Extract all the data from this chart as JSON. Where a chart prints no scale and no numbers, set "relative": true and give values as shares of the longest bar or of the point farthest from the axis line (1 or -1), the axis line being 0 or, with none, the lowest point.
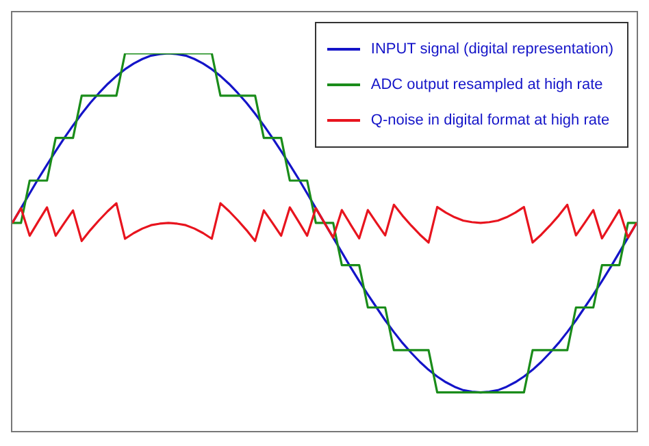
{
  "chart_data": {
    "type": "line",
    "relative": true,
    "legend": "top right",
    "marker": "none",
    "line_style": "solid",
    "categories": [
      null,
      null,
      null,
      null,
      null,
      null,
      null,
      null,
      null,
      null,
      null,
      null,
      null,
      null,
      null,
      null,
      null,
      null,
      null,
      null,
      null,
      null,
      null,
      null,
      null,
      null,
      null,
      null,
      null,
      null,
      null,
      null,
      null,
      null,
      null,
      null,
      null,
      null,
      null,
      null,
      null,
      null,
      null,
      null,
      null,
      null,
      null,
      null,
      null,
      null,
      null,
      null,
      null,
      null,
      null,
      null,
      null,
      null,
      null,
      null,
      null,
      null,
      null,
      null,
      null,
      null,
      null,
      null,
      null,
      null,
      null,
      null,
      null
    ],
    "series": [
      {
        "name": "INPUT signal (digital representation)",
        "color": "#1414c8",
        "values": [
          0.551,
          0.59,
          0.629,
          0.668,
          0.705,
          0.741,
          0.776,
          0.809,
          0.84,
          0.869,
          0.895,
          0.919,
          0.94,
          0.958,
          0.973,
          0.985,
          0.994,
          0.998,
          1,
          0.998,
          0.994,
          0.985,
          0.973,
          0.958,
          0.94,
          0.919,
          0.895,
          0.869,
          0.84,
          0.809,
          0.776,
          0.741,
          0.705,
          0.668,
          0.629,
          0.59,
          0.551,
          0.512,
          0.473,
          0.434,
          0.397,
          0.361,
          0.327,
          0.293,
          0.262,
          0.233,
          0.207,
          0.183,
          0.162,
          0.144,
          0.129,
          0.117,
          0.108,
          0.104,
          0.102,
          0.104,
          0.108,
          0.117,
          0.129,
          0.144,
          0.162,
          0.183,
          0.207,
          0.233,
          0.262,
          0.293,
          0.327,
          0.361,
          0.397,
          0.434,
          0.473,
          0.512,
          0.551
        ]
      },
      {
        "name": "ADC output resampled at high rate",
        "color": "#1a8c1a",
        "values": [
          0.551,
          0.551,
          0.663,
          0.663,
          0.663,
          0.776,
          0.776,
          0.776,
          0.888,
          0.888,
          0.888,
          0.888,
          0.888,
          1,
          1,
          1,
          1,
          1,
          1,
          1,
          1,
          1,
          1,
          1,
          0.888,
          0.888,
          0.888,
          0.888,
          0.888,
          0.776,
          0.776,
          0.776,
          0.663,
          0.663,
          0.663,
          0.551,
          0.551,
          0.551,
          0.439,
          0.439,
          0.439,
          0.327,
          0.327,
          0.327,
          0.214,
          0.214,
          0.214,
          0.214,
          0.214,
          0.102,
          0.102,
          0.102,
          0.102,
          0.102,
          0.102,
          0.102,
          0.102,
          0.102,
          0.102,
          0.102,
          0.214,
          0.214,
          0.214,
          0.214,
          0.214,
          0.327,
          0.327,
          0.327,
          0.439,
          0.439,
          0.439,
          0.551,
          0.551
        ]
      },
      {
        "name": "Q-noise in digital format at high rate",
        "color": "#e8141e",
        "values": [
          0.551,
          0.59,
          0.517,
          0.555,
          0.592,
          0.517,
          0.551,
          0.584,
          0.503,
          0.532,
          0.558,
          0.582,
          0.603,
          0.509,
          0.524,
          0.536,
          0.545,
          0.549,
          0.551,
          0.549,
          0.545,
          0.536,
          0.524,
          0.509,
          0.603,
          0.582,
          0.558,
          0.532,
          0.503,
          0.584,
          0.551,
          0.517,
          0.592,
          0.555,
          0.517,
          0.59,
          0.551,
          0.512,
          0.585,
          0.547,
          0.51,
          0.585,
          0.551,
          0.518,
          0.599,
          0.57,
          0.544,
          0.52,
          0.499,
          0.593,
          0.578,
          0.566,
          0.557,
          0.553,
          0.551,
          0.553,
          0.557,
          0.566,
          0.578,
          0.593,
          0.499,
          0.52,
          0.544,
          0.57,
          0.599,
          0.518,
          0.551,
          0.585,
          0.51,
          0.547,
          0.585,
          0.512,
          0.551
        ]
      }
    ]
  }
}
